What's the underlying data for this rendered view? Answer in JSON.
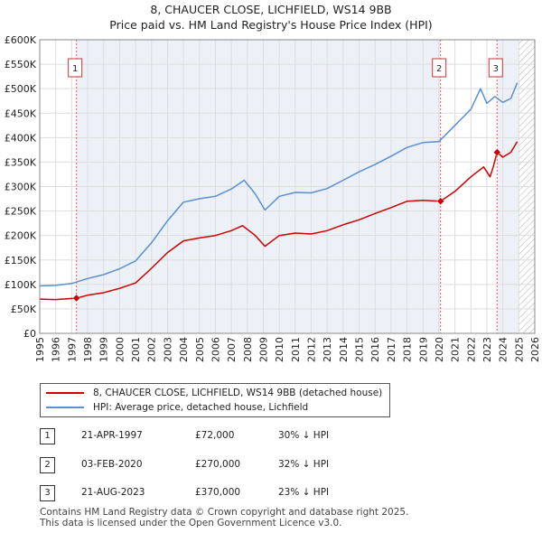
{
  "title_line1": "8, CHAUCER CLOSE, LICHFIELD, WS14 9BB",
  "title_line2": "Price paid vs. HM Land Registry's House Price Index (HPI)",
  "legend": {
    "property_label": "8, CHAUCER CLOSE, LICHFIELD, WS14 9BB (detached house)",
    "hpi_label": "HPI: Average price, detached house, Lichfield"
  },
  "colors": {
    "property": "#cc0000",
    "hpi": "#5b8fd0",
    "grid": "#dddddd",
    "shade": "#dde6f3",
    "future_hatch": "#bbbbbb"
  },
  "transactions": [
    {
      "num": "1",
      "date": "21-APR-1997",
      "price": "£72,000",
      "hpi_change": "30% ↓ HPI"
    },
    {
      "num": "2",
      "date": "03-FEB-2020",
      "price": "£270,000",
      "hpi_change": "32% ↓ HPI"
    },
    {
      "num": "3",
      "date": "21-AUG-2023",
      "price": "£370,000",
      "hpi_change": "23% ↓ HPI"
    }
  ],
  "footer_line1": "Contains HM Land Registry data © Crown copyright and database right 2025.",
  "footer_line2": "This data is licensed under the Open Government Licence v3.0.",
  "chart_data": {
    "type": "line",
    "title": "Price paid vs. HM Land Registry's House Price Index (HPI)",
    "xlabel": "",
    "ylabel": "",
    "xlim": [
      1995,
      2026
    ],
    "ylim": [
      0,
      600000
    ],
    "x_ticks": [
      1995,
      1996,
      1997,
      1998,
      1999,
      2000,
      2001,
      2002,
      2003,
      2004,
      2005,
      2006,
      2007,
      2008,
      2009,
      2010,
      2011,
      2012,
      2013,
      2014,
      2015,
      2016,
      2017,
      2018,
      2019,
      2020,
      2021,
      2022,
      2023,
      2024,
      2025,
      2026
    ],
    "y_ticks": [
      0,
      50000,
      100000,
      150000,
      200000,
      250000,
      300000,
      350000,
      400000,
      450000,
      500000,
      550000,
      600000
    ],
    "y_tick_labels": [
      "£0",
      "£50K",
      "£100K",
      "£150K",
      "£200K",
      "£250K",
      "£300K",
      "£350K",
      "£400K",
      "£450K",
      "£500K",
      "£550K",
      "£600K"
    ],
    "future_from": 2025.0,
    "series": [
      {
        "name": "8, CHAUCER CLOSE, LICHFIELD, WS14 9BB (detached house)",
        "x": [
          1995.0,
          1996.0,
          1997.3,
          1998.0,
          1999.0,
          2000.0,
          2001.0,
          2002.0,
          2003.0,
          2004.0,
          2005.0,
          2006.0,
          2007.0,
          2007.7,
          2008.5,
          2009.1,
          2010.0,
          2011.0,
          2012.0,
          2013.0,
          2014.0,
          2015.0,
          2016.0,
          2017.0,
          2018.0,
          2019.0,
          2020.1,
          2021.0,
          2022.0,
          2022.8,
          2023.2,
          2023.4,
          2023.64,
          2024.0,
          2024.5,
          2024.9
        ],
        "y": [
          70000,
          69000,
          72000,
          78000,
          83000,
          92000,
          103000,
          133000,
          165000,
          189000,
          195000,
          200000,
          210000,
          220000,
          200000,
          178000,
          200000,
          205000,
          203000,
          210000,
          222000,
          232000,
          245000,
          257000,
          270000,
          272000,
          270000,
          290000,
          320000,
          340000,
          320000,
          340000,
          370000,
          360000,
          370000,
          392000
        ]
      },
      {
        "name": "HPI: Average price, detached house, Lichfield",
        "x": [
          1995.0,
          1996.0,
          1997.0,
          1998.0,
          1999.0,
          2000.0,
          2001.0,
          2002.0,
          2003.0,
          2004.0,
          2005.0,
          2006.0,
          2007.0,
          2007.8,
          2008.5,
          2009.1,
          2010.0,
          2011.0,
          2012.0,
          2013.0,
          2014.0,
          2015.0,
          2016.0,
          2017.0,
          2018.0,
          2019.0,
          2020.0,
          2021.0,
          2022.0,
          2022.6,
          2023.0,
          2023.5,
          2024.0,
          2024.5,
          2024.9
        ],
        "y": [
          97000,
          98000,
          102000,
          112000,
          120000,
          132000,
          148000,
          185000,
          230000,
          268000,
          275000,
          280000,
          295000,
          313000,
          285000,
          252000,
          280000,
          288000,
          287000,
          296000,
          313000,
          330000,
          345000,
          362000,
          380000,
          390000,
          392000,
          425000,
          458000,
          500000,
          470000,
          484000,
          472000,
          480000,
          512000
        ]
      }
    ],
    "markers": [
      {
        "label": "1",
        "x": 1997.3,
        "y": 72000
      },
      {
        "label": "2",
        "x": 2020.1,
        "y": 270000
      },
      {
        "label": "3",
        "x": 2023.64,
        "y": 370000
      }
    ]
  }
}
